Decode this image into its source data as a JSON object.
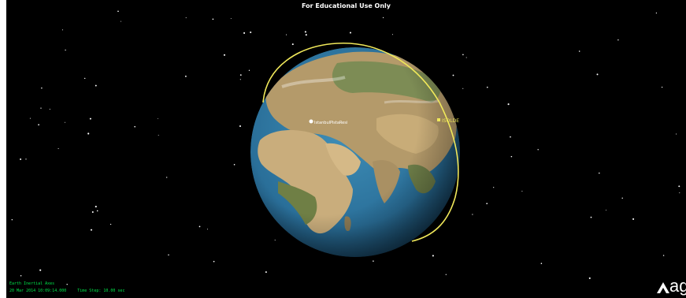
{
  "banner": "For Educational Use Only",
  "scene": {
    "facility_label": "IstanbulPistaResi",
    "satellite_label": "ISOLDE",
    "orbit_color": "#f0e85a"
  },
  "hud": {
    "axes": "Earth Inertial Axes",
    "datetime": "20 Mar 2014 10:09:14.000",
    "time_step": "Time Step: 10.00 sec"
  },
  "logo": {
    "text": "ag",
    "icon": "agi-logo-icon"
  }
}
